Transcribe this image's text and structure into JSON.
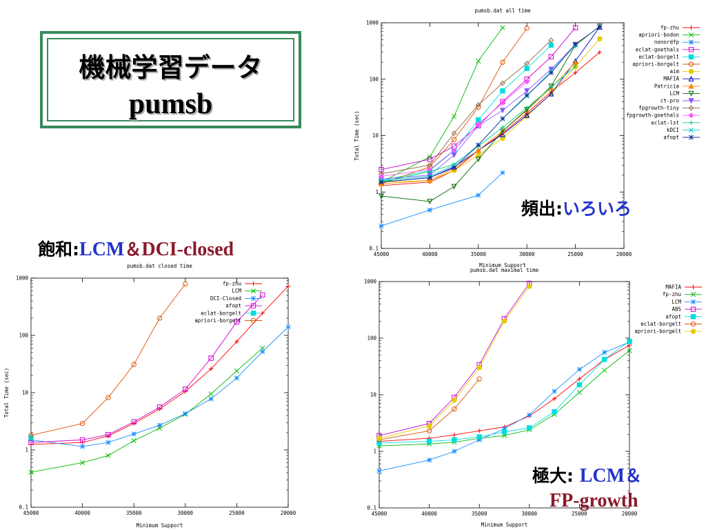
{
  "slide": {
    "title_line1": "機械学習データ",
    "title_line2": "pumsb"
  },
  "annotations": {
    "frequent": {
      "label": "頻出",
      "sep": ":",
      "value": "いろいろ"
    },
    "closed": {
      "label": "飽和",
      "sep": ":",
      "value1": "LCM",
      "amp": "＆",
      "value2": "DCI-closed"
    },
    "maximal": {
      "label": "極大",
      "sep": ":",
      "value1": "LCM",
      "amp": "＆",
      "value2": "FP-growth"
    }
  },
  "chart_data": [
    {
      "id": "all",
      "type": "line",
      "title": "pumsb.dat all time",
      "xlabel": "Minimum Support",
      "ylabel": "Total Time (sec)",
      "xlim": [
        45000,
        20000
      ],
      "ylim": [
        0.1,
        1000
      ],
      "yscale": "log",
      "xticks": [
        45000,
        40000,
        35000,
        30000,
        25000,
        20000
      ],
      "yticks": [
        0.1,
        1,
        10,
        100,
        1000
      ],
      "yticklabels": [
        "0.1",
        "1",
        "10",
        "100",
        "1000"
      ],
      "legend_position": "right",
      "series": [
        {
          "name": "fp-zhu",
          "color": "#ff0000",
          "marker": "plus",
          "x": [
            45000,
            40000,
            37500,
            35000,
            32500,
            30000,
            27500,
            25000,
            22500
          ],
          "y": [
            1.3,
            1.5,
            2.4,
            5.5,
            11,
            25,
            60,
            130,
            300
          ]
        },
        {
          "name": "apriori-bodon",
          "color": "#00bb00",
          "marker": "x",
          "x": [
            45000,
            40000,
            37500,
            35000,
            32500
          ],
          "y": [
            1.5,
            4.2,
            22,
            210,
            820
          ]
        },
        {
          "name": "nonordfp",
          "color": "#1a8cff",
          "marker": "star",
          "x": [
            45000,
            40000,
            35000,
            32500
          ],
          "y": [
            0.25,
            0.48,
            0.88,
            2.2
          ]
        },
        {
          "name": "eclat-goethals",
          "color": "#cc00cc",
          "marker": "square",
          "x": [
            45000,
            40000,
            37500,
            35000,
            32500,
            30000,
            27500,
            25000
          ],
          "y": [
            2.5,
            3.8,
            6.5,
            15,
            40,
            100,
            250,
            820
          ]
        },
        {
          "name": "eclat-borgelt",
          "color": "#00dddd",
          "marker": "fsquare",
          "x": [
            45000,
            40000,
            37500,
            35000,
            32500,
            30000,
            27500
          ],
          "y": [
            1.6,
            2.4,
            5.4,
            19,
            62,
            155,
            400
          ]
        },
        {
          "name": "apriori-borgelt",
          "color": "#dd5500",
          "marker": "circle",
          "x": [
            45000,
            40000,
            37500,
            35000,
            32500,
            30000
          ],
          "y": [
            1.4,
            2.8,
            8.5,
            32,
            200,
            800
          ]
        },
        {
          "name": "aim",
          "color": "#e6cc00",
          "marker": "fcircle",
          "x": [
            45000,
            40000,
            37500,
            35000,
            32500,
            30000,
            27500,
            25000,
            22500
          ],
          "y": [
            1.5,
            1.6,
            2.4,
            4.5,
            9,
            22,
            55,
            165,
            520
          ]
        },
        {
          "name": "MAFIA",
          "color": "#0000cc",
          "marker": "triangle",
          "x": [
            45000,
            40000,
            37500,
            35000,
            32500,
            30000,
            27500,
            25000,
            22500
          ],
          "y": [
            1.5,
            1.8,
            2.8,
            5.5,
            10.5,
            23,
            55,
            210,
            840
          ]
        },
        {
          "name": "Patricia",
          "color": "#ff8800",
          "marker": "ftriangle",
          "x": [
            45000,
            40000,
            37500,
            35000,
            32500,
            30000,
            27500,
            25000
          ],
          "y": [
            1.4,
            1.6,
            2.6,
            5.5,
            12,
            28,
            70,
            200
          ]
        },
        {
          "name": "LCM",
          "color": "#006600",
          "marker": "dtriangle",
          "x": [
            45000,
            40000,
            37500,
            35000,
            32500,
            30000,
            27500,
            25000,
            22500
          ],
          "y": [
            0.85,
            0.68,
            1.25,
            3.8,
            12,
            29,
            75,
            400,
            870
          ]
        },
        {
          "name": "ct-pro",
          "color": "#8855ff",
          "marker": "fdtriangle",
          "x": [
            45000,
            40000,
            37500,
            35000,
            32500,
            30000,
            27500,
            25000
          ],
          "y": [
            1.7,
            2.0,
            4.5,
            15,
            28,
            62,
            150,
            410
          ]
        },
        {
          "name": "fpgrowth-tiny",
          "color": "#886644",
          "marker": "diamond",
          "x": [
            45000,
            40000,
            37500,
            35000,
            32500,
            30000,
            27500
          ],
          "y": [
            2.1,
            3.0,
            11,
            35,
            85,
            190,
            490
          ]
        },
        {
          "name": "fpgrowth-goethals",
          "color": "#ff55ff",
          "marker": "fdiamond",
          "x": [
            45000,
            40000,
            37500,
            35000,
            32500,
            30000
          ],
          "y": [
            1.9,
            2.5,
            5.5,
            16,
            38,
            90
          ]
        },
        {
          "name": "eclat-lst",
          "color": "#00cc77",
          "marker": "plus",
          "x": [
            45000,
            40000,
            37500,
            35000,
            32500,
            30000,
            27500,
            25000
          ],
          "y": [
            1.5,
            2.3,
            3.1,
            6.5,
            14,
            31,
            72,
            170
          ]
        },
        {
          "name": "kDCI",
          "color": "#00cccc",
          "marker": "x",
          "x": [
            45000,
            40000,
            37500,
            35000,
            32500,
            30000,
            27500,
            25000
          ],
          "y": [
            1.6,
            1.9,
            3.0,
            6.8,
            20,
            50,
            140,
            400
          ]
        },
        {
          "name": "afopt",
          "color": "#113399",
          "marker": "star",
          "x": [
            45000,
            40000,
            37500,
            35000,
            32500,
            30000,
            27500,
            25000,
            22500
          ],
          "y": [
            1.5,
            1.8,
            2.7,
            6.8,
            20,
            52,
            130,
            420,
            850
          ]
        }
      ]
    },
    {
      "id": "closed",
      "type": "line",
      "title": "pumsb.dat closed time",
      "xlabel": "Minimum Support",
      "ylabel": "Total Time (sec)",
      "xlim": [
        45000,
        20000
      ],
      "ylim": [
        0.1,
        1000
      ],
      "yscale": "log",
      "xticks": [
        45000,
        40000,
        35000,
        30000,
        25000,
        20000
      ],
      "yticks": [
        0.1,
        1,
        10,
        100,
        1000
      ],
      "yticklabels": [
        "0.1",
        "1",
        "10",
        "100",
        "1000"
      ],
      "legend_position": "top-right",
      "series": [
        {
          "name": "fp-zhu",
          "color": "#ff0000",
          "marker": "plus",
          "x": [
            45000,
            40000,
            37500,
            35000,
            32500,
            30000,
            27500,
            25000,
            22500,
            20000
          ],
          "y": [
            1.25,
            1.35,
            1.75,
            2.9,
            5.2,
            10.5,
            26,
            78,
            245,
            720
          ]
        },
        {
          "name": "LCM",
          "color": "#00bb00",
          "marker": "x",
          "x": [
            45000,
            40000,
            37500,
            35000,
            32500,
            30000,
            27500,
            25000,
            22500
          ],
          "y": [
            0.41,
            0.6,
            0.8,
            1.45,
            2.4,
            4.2,
            9.5,
            24,
            60
          ]
        },
        {
          "name": "DCI-Closed",
          "color": "#1a8cff",
          "marker": "star",
          "x": [
            45000,
            40000,
            37500,
            35000,
            32500,
            30000,
            27500,
            25000,
            22500,
            20000
          ],
          "y": [
            1.5,
            1.15,
            1.35,
            1.9,
            2.7,
            4.3,
            7.8,
            18,
            52,
            140
          ]
        },
        {
          "name": "afopt",
          "color": "#cc00cc",
          "marker": "square",
          "x": [
            45000,
            40000,
            37500,
            35000,
            32500,
            30000,
            27500,
            25000,
            22500
          ],
          "y": [
            1.35,
            1.5,
            1.85,
            3.1,
            5.6,
            11.5,
            40,
            172,
            510
          ]
        },
        {
          "name": "eclat-borgelt",
          "color": "#00dddd",
          "marker": "fsquare",
          "x": [
            45000
          ],
          "y": [
            1.65
          ]
        },
        {
          "name": "apriori-borgelt",
          "color": "#dd5500",
          "marker": "circle",
          "x": [
            45000,
            40000,
            37500,
            35000,
            32500,
            30000
          ],
          "y": [
            1.8,
            2.9,
            8.2,
            31,
            200,
            790
          ]
        }
      ]
    },
    {
      "id": "maximal",
      "type": "line",
      "title": "pumsb.dat maximal time",
      "xlabel": "Minimum Support",
      "ylabel": "",
      "xlim": [
        45000,
        20000
      ],
      "ylim": [
        0.1,
        1000
      ],
      "yscale": "log",
      "xticks": [
        45000,
        40000,
        35000,
        30000,
        25000,
        20000
      ],
      "yticks": [
        0.1,
        1,
        10,
        100,
        1000
      ],
      "yticklabels": [
        "0.1",
        "1",
        "10",
        "100",
        "1000"
      ],
      "legend_position": "top-right",
      "series": [
        {
          "name": "MAFIA",
          "color": "#ff0000",
          "marker": "plus",
          "x": [
            45000,
            40000,
            37500,
            35000,
            32500,
            30000,
            27500,
            25000,
            22500,
            20000
          ],
          "y": [
            1.5,
            1.7,
            1.95,
            2.3,
            2.7,
            4.2,
            8.5,
            19,
            42,
            75
          ]
        },
        {
          "name": "fp-zhu",
          "color": "#00bb00",
          "marker": "x",
          "x": [
            45000,
            40000,
            37500,
            35000,
            32500,
            30000,
            27500,
            25000,
            22500,
            20000
          ],
          "y": [
            1.25,
            1.35,
            1.45,
            1.7,
            1.9,
            2.4,
            4.5,
            11,
            27,
            60
          ]
        },
        {
          "name": "LCM",
          "color": "#1a8cff",
          "marker": "star",
          "x": [
            45000,
            40000,
            37500,
            35000,
            32500,
            30000,
            27500,
            25000,
            22500,
            20000
          ],
          "y": [
            0.45,
            0.7,
            1.0,
            1.6,
            2.5,
            4.4,
            11.5,
            28,
            56,
            85
          ]
        },
        {
          "name": "ABS",
          "color": "#cc00cc",
          "marker": "square",
          "x": [
            45000,
            40000,
            37500,
            35000,
            32500,
            30000
          ],
          "y": [
            1.9,
            3.1,
            9.0,
            34,
            220,
            930
          ]
        },
        {
          "name": "afopt",
          "color": "#00dddd",
          "marker": "fsquare",
          "x": [
            45000,
            40000,
            37500,
            35000,
            32500,
            30000,
            27500,
            25000,
            22500,
            20000
          ],
          "y": [
            1.4,
            1.5,
            1.6,
            1.8,
            2.2,
            2.6,
            5.0,
            15,
            42,
            88
          ]
        },
        {
          "name": "eclat-borgelt",
          "color": "#dd5500",
          "marker": "circle",
          "x": [
            45000,
            40000,
            37500,
            35000
          ],
          "y": [
            1.6,
            2.3,
            5.6,
            19
          ]
        },
        {
          "name": "apriori-borgelt",
          "color": "#e6cc00",
          "marker": "fcircle",
          "x": [
            45000,
            40000,
            37500,
            35000,
            32500,
            30000
          ],
          "y": [
            1.7,
            2.8,
            8.0,
            30,
            200,
            820
          ]
        }
      ]
    }
  ]
}
